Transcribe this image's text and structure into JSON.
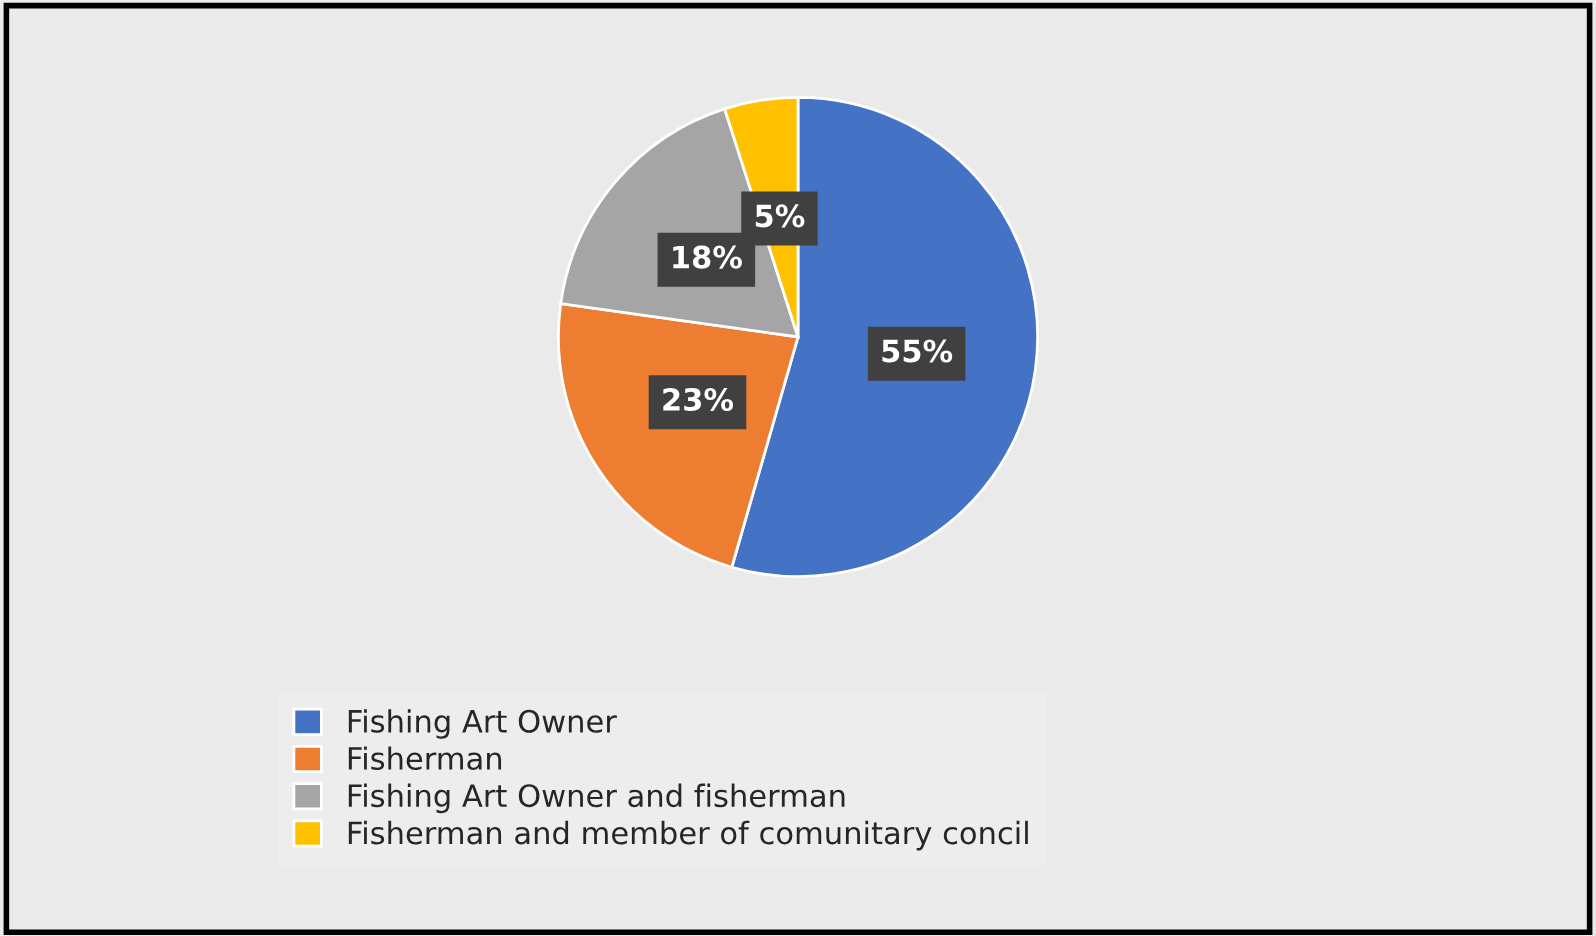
{
  "chart_data": {
    "type": "pie",
    "categories": [
      "Fishing Art Owner",
      "Fisherman",
      "Fishing Art Owner and fisherman",
      "Fisherman and member of comunitary concil"
    ],
    "values": [
      55,
      23,
      18,
      5
    ],
    "colors": [
      "#4472c4",
      "#ed7d31",
      "#a5a5a5",
      "#ffc000"
    ],
    "value_labels": [
      "55%",
      "23%",
      "18%",
      "5%"
    ],
    "legend": "bottom"
  }
}
